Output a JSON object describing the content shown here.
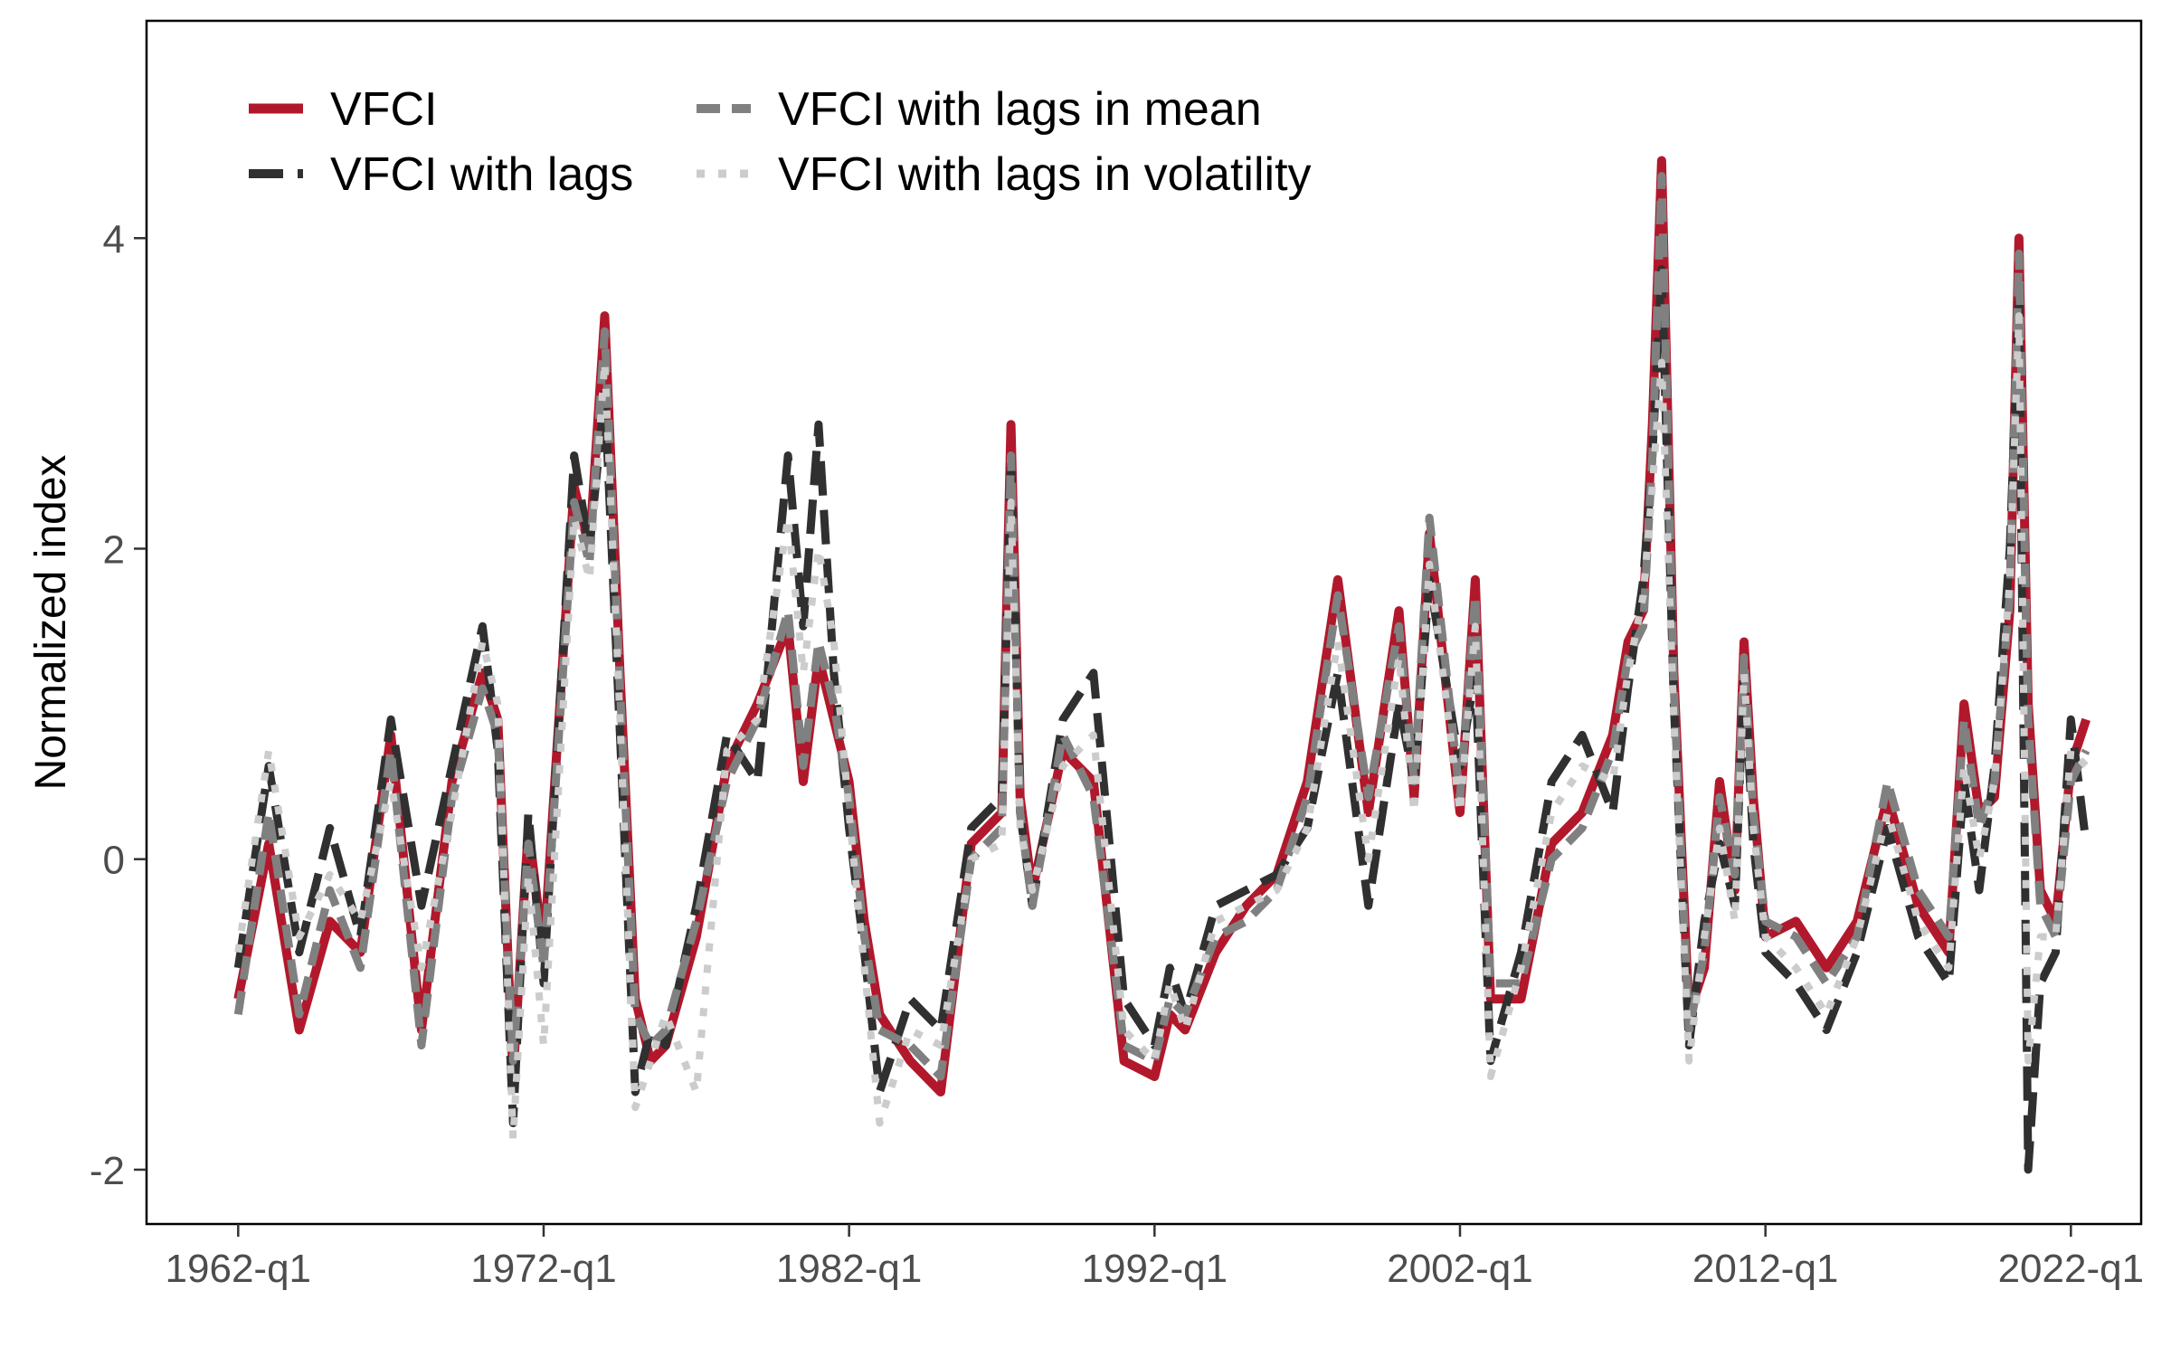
{
  "chart_data": {
    "type": "line",
    "title": "",
    "xlabel": "",
    "ylabel": "Normalized index",
    "x_tick_labels": [
      "1962-q1",
      "1972-q1",
      "1982-q1",
      "1992-q1",
      "2002-q1",
      "2012-q1",
      "2022-q1"
    ],
    "y_tick_labels": [
      "-2",
      "0",
      "2",
      "4"
    ],
    "x_ticks": [
      1962,
      1972,
      1982,
      1992,
      2002,
      2012,
      2022
    ],
    "y_ticks": [
      -2,
      0,
      2,
      4
    ],
    "xlim": [
      1959.0,
      2024.3
    ],
    "ylim": [
      -2.35,
      5.4
    ],
    "grid": false,
    "legend_position": "top-left, inside plot",
    "x": [
      1962.0,
      1963.0,
      1964.0,
      1965.0,
      1966.0,
      1967.0,
      1968.0,
      1969.0,
      1970.0,
      1970.5,
      1971.0,
      1971.5,
      1972.0,
      1973.0,
      1973.5,
      1974.0,
      1974.5,
      1975.0,
      1975.5,
      1976.0,
      1977.0,
      1978.0,
      1979.0,
      1980.0,
      1980.5,
      1981.0,
      1981.5,
      1982.0,
      1982.5,
      1983.0,
      1984.0,
      1985.0,
      1986.0,
      1987.0,
      1987.3,
      1987.6,
      1988.0,
      1989.0,
      1990.0,
      1991.0,
      1992.0,
      1992.5,
      1993.0,
      1994.0,
      1995.0,
      1996.0,
      1997.0,
      1998.0,
      1999.0,
      2000.0,
      2000.5,
      2001.0,
      2002.0,
      2002.5,
      2003.0,
      2004.0,
      2005.0,
      2006.0,
      2007.0,
      2007.5,
      2008.0,
      2008.3,
      2008.6,
      2009.0,
      2009.5,
      2010.0,
      2010.5,
      2011.0,
      2011.3,
      2011.6,
      2012.0,
      2013.0,
      2014.0,
      2015.0,
      2016.0,
      2017.0,
      2018.0,
      2018.5,
      2019.0,
      2019.5,
      2020.0,
      2020.3,
      2020.6,
      2021.0,
      2021.5,
      2022.0,
      2022.5
    ],
    "series": [
      {
        "name": "VFCI",
        "color": "#b2182b",
        "dash": "solid",
        "values": [
          -0.9,
          0.1,
          -1.1,
          -0.4,
          -0.6,
          0.8,
          -1.1,
          0.5,
          1.2,
          0.9,
          -1.4,
          0.2,
          -0.6,
          2.4,
          2.0,
          3.5,
          1.2,
          -0.9,
          -1.3,
          -1.2,
          -0.5,
          0.6,
          1.0,
          1.5,
          0.5,
          1.3,
          0.9,
          0.5,
          -0.4,
          -1.0,
          -1.3,
          -1.5,
          0.1,
          0.3,
          2.8,
          0.4,
          -0.2,
          0.7,
          0.5,
          -1.3,
          -1.4,
          -1.0,
          -1.1,
          -0.6,
          -0.3,
          -0.1,
          0.5,
          1.8,
          0.3,
          1.6,
          0.4,
          2.1,
          0.3,
          1.8,
          -0.9,
          -0.9,
          0.1,
          0.3,
          0.8,
          1.4,
          1.6,
          2.8,
          4.5,
          1.2,
          -1.0,
          -0.7,
          0.5,
          -0.2,
          1.4,
          0.4,
          -0.5,
          -0.4,
          -0.7,
          -0.4,
          0.4,
          -0.3,
          -0.6,
          1.0,
          0.3,
          0.4,
          1.6,
          4.0,
          1.0,
          -0.2,
          -0.4,
          0.6,
          0.9
        ]
      },
      {
        "name": "VFCI with lags",
        "color": "#303030",
        "dash": "long-dash",
        "values": [
          -0.7,
          0.6,
          -0.6,
          0.2,
          -0.5,
          0.9,
          -0.3,
          0.6,
          1.5,
          0.7,
          -1.7,
          0.3,
          -0.8,
          2.6,
          2.0,
          3.0,
          0.8,
          -1.5,
          -1.1,
          -1.2,
          -0.3,
          0.8,
          0.5,
          2.6,
          1.5,
          2.8,
          1.2,
          0.2,
          -0.6,
          -1.5,
          -0.9,
          -1.1,
          0.2,
          0.4,
          2.6,
          0.3,
          -0.3,
          0.9,
          1.2,
          -0.9,
          -1.2,
          -0.7,
          -1.0,
          -0.3,
          -0.2,
          -0.1,
          0.2,
          1.2,
          -0.3,
          1.0,
          0.5,
          1.8,
          0.6,
          1.2,
          -1.3,
          -0.6,
          0.5,
          0.8,
          0.3,
          1.1,
          1.8,
          2.6,
          3.8,
          1.0,
          -1.2,
          -0.4,
          0.1,
          -0.3,
          1.2,
          0.1,
          -0.6,
          -0.8,
          -1.1,
          -0.6,
          0.2,
          -0.5,
          -0.8,
          0.5,
          -0.2,
          0.6,
          2.0,
          3.6,
          -2.0,
          -0.8,
          -0.6,
          0.9,
          0.1
        ]
      },
      {
        "name": "VFCI with lags in mean",
        "color": "#808080",
        "dash": "dash",
        "values": [
          -1.0,
          0.3,
          -1.0,
          -0.2,
          -0.7,
          0.7,
          -1.2,
          0.4,
          1.1,
          0.8,
          -1.3,
          0.1,
          -0.7,
          2.3,
          1.9,
          3.4,
          1.1,
          -1.0,
          -1.2,
          -1.1,
          -0.4,
          0.5,
          0.9,
          1.6,
          0.6,
          1.4,
          1.0,
          0.4,
          -0.5,
          -1.1,
          -1.2,
          -1.4,
          0.0,
          0.2,
          2.6,
          0.3,
          -0.3,
          0.8,
          0.4,
          -1.2,
          -1.3,
          -0.9,
          -1.0,
          -0.5,
          -0.4,
          -0.2,
          0.4,
          1.7,
          0.4,
          1.5,
          0.5,
          2.2,
          0.4,
          1.7,
          -0.8,
          -0.8,
          0.0,
          0.2,
          0.7,
          1.3,
          1.5,
          2.6,
          4.4,
          1.1,
          -1.1,
          -0.6,
          0.4,
          -0.1,
          1.3,
          0.3,
          -0.4,
          -0.5,
          -0.8,
          -0.5,
          0.5,
          -0.2,
          -0.5,
          0.9,
          0.2,
          0.5,
          1.7,
          3.9,
          0.9,
          -0.3,
          -0.5,
          0.5,
          0.7
        ]
      },
      {
        "name": "VFCI with lags in volatility",
        "color": "#cccccc",
        "dash": "dot",
        "values": [
          -0.6,
          0.7,
          -0.5,
          -0.1,
          -0.4,
          0.5,
          -0.7,
          0.3,
          1.4,
          1.0,
          -1.8,
          -0.1,
          -1.2,
          2.2,
          1.8,
          3.2,
          0.9,
          -1.6,
          -1.3,
          -1.0,
          -1.5,
          0.7,
          0.9,
          2.2,
          1.2,
          2.0,
          1.4,
          0.3,
          -0.7,
          -1.7,
          -1.1,
          -1.2,
          0.0,
          0.1,
          2.3,
          0.2,
          -0.2,
          0.6,
          0.8,
          -1.1,
          -1.3,
          -0.8,
          -1.1,
          -0.4,
          -0.3,
          -0.2,
          0.2,
          1.4,
          0.0,
          1.3,
          0.3,
          1.9,
          0.3,
          1.5,
          -1.4,
          -0.7,
          0.3,
          0.6,
          0.5,
          1.2,
          1.7,
          2.4,
          3.2,
          0.9,
          -1.3,
          -0.5,
          0.2,
          -0.4,
          1.2,
          0.2,
          -0.5,
          -0.7,
          -1.0,
          -0.5,
          0.3,
          -0.4,
          -0.7,
          0.6,
          0.0,
          0.5,
          1.8,
          3.5,
          -1.3,
          -0.5,
          -0.5,
          0.7,
          0.6
        ]
      }
    ]
  }
}
